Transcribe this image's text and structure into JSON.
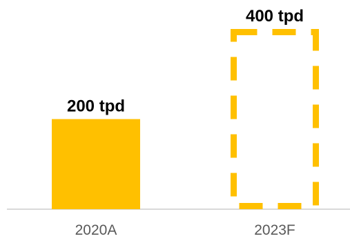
{
  "chart_data": {
    "type": "bar",
    "categories": [
      "2020A",
      "2023F"
    ],
    "values": [
      200,
      400
    ],
    "value_labels": [
      "200 tpd",
      "400 tpd"
    ],
    "bar_styles": [
      "solid",
      "dashed-outline"
    ],
    "title": "",
    "xlabel": "",
    "ylabel": "",
    "ylim": [
      0,
      400
    ],
    "grid": false,
    "legend": "none",
    "colors": {
      "bar": "#FFC000",
      "axis": "#D9D9D9",
      "label": "#000000",
      "tick": "#595959"
    }
  }
}
